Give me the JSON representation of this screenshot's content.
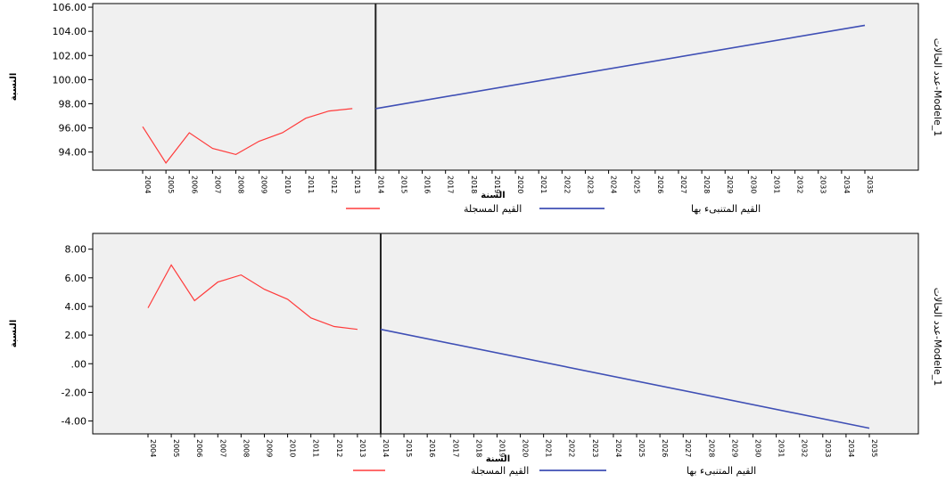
{
  "chart_data": [
    {
      "type": "line",
      "ylabel": "النسبة",
      "xlabel": "السنة",
      "side_label": "عدد الحالات-Modele_1",
      "ylim": [
        92.5,
        106.3
      ],
      "yticks": [
        "106.00",
        "104.00",
        "102.00",
        "100.00",
        "98.00",
        "96.00",
        "94.00"
      ],
      "ytick_values": [
        106,
        104,
        102,
        100,
        98,
        96,
        94
      ],
      "categories": [
        "2004",
        "2005",
        "2006",
        "2007",
        "2008",
        "2009",
        "2010",
        "2011",
        "2012",
        "2013",
        "2014",
        "2015",
        "2016",
        "2017",
        "2018",
        "2019",
        "2020",
        "2021",
        "2022",
        "2023",
        "2024",
        "2025",
        "2026",
        "2027",
        "2028",
        "2029",
        "2030",
        "2031",
        "2032",
        "2033",
        "2034",
        "2035"
      ],
      "forecast_start": "2014",
      "series": [
        {
          "name": "القيم المسجلة",
          "color": "#ff3b3b",
          "x": [
            "2004",
            "2005",
            "2006",
            "2007",
            "2008",
            "2009",
            "2010",
            "2011",
            "2012",
            "2013"
          ],
          "values": [
            96.1,
            93.1,
            95.6,
            94.3,
            93.8,
            94.9,
            95.6,
            96.8,
            97.4,
            97.6
          ]
        },
        {
          "name": "القيم المتنبىء بها",
          "color": "#3f4fb5",
          "x": [
            "2014",
            "2035"
          ],
          "values": [
            97.6,
            104.5
          ]
        }
      ],
      "legend": [
        {
          "label": "القيم المسجلة",
          "color": "#ff3b3b"
        },
        {
          "label": "القيم المتنبىء بها",
          "color": "#3f4fb5"
        }
      ],
      "grid": false,
      "legend_position": "bottom"
    },
    {
      "type": "line",
      "ylabel": "النسبة",
      "xlabel": "السنة",
      "side_label": "عدد الحالات-Modele_1",
      "ylim": [
        -4.9,
        9.1
      ],
      "yticks": [
        "8.00",
        "6.00",
        "4.00",
        "2.00",
        ".00",
        "-2.00",
        "-4.00"
      ],
      "ytick_values": [
        8,
        6,
        4,
        2,
        0,
        -2,
        -4
      ],
      "categories": [
        "2004",
        "2005",
        "2006",
        "2007",
        "2008",
        "2009",
        "2010",
        "2011",
        "2012",
        "2013",
        "2014",
        "2015",
        "2016",
        "2017",
        "2018",
        "2019",
        "2020",
        "2021",
        "2022",
        "2023",
        "2024",
        "2025",
        "2026",
        "2027",
        "2028",
        "2029",
        "2030",
        "2031",
        "2032",
        "2033",
        "2034",
        "2035"
      ],
      "forecast_start": "2014",
      "series": [
        {
          "name": "القيم المسجلة",
          "color": "#ff3b3b",
          "x": [
            "2004",
            "2005",
            "2006",
            "2007",
            "2008",
            "2009",
            "2010",
            "2011",
            "2012",
            "2013"
          ],
          "values": [
            3.9,
            6.9,
            4.4,
            5.7,
            6.2,
            5.2,
            4.5,
            3.2,
            2.6,
            2.4
          ]
        },
        {
          "name": "القيم المتنبىء بها",
          "color": "#3f4fb5",
          "x": [
            "2014",
            "2035"
          ],
          "values": [
            2.4,
            -4.5
          ]
        }
      ],
      "legend": [
        {
          "label": "القيم المسجلة",
          "color": "#ff3b3b"
        },
        {
          "label": "القيم المتنبىء بها",
          "color": "#3f4fb5"
        }
      ],
      "grid": false,
      "legend_position": "bottom"
    }
  ]
}
